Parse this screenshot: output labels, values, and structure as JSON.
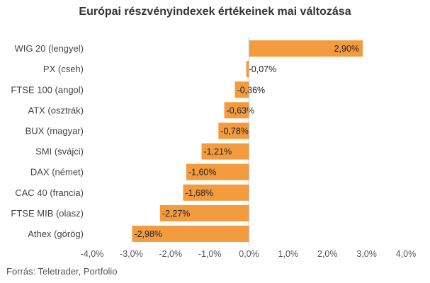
{
  "chart_data": {
    "type": "bar",
    "orientation": "horizontal",
    "title": "Európai részvényindexek értékeinek mai változása",
    "categories": [
      "WIG 20 (lengyel)",
      "PX (cseh)",
      "FTSE 100 (angol)",
      "ATX (osztrák)",
      "BUX (magyar)",
      "SMI (svájci)",
      "DAX (német)",
      "CAC 40 (francia)",
      "FTSE MIB (olasz)",
      "Athex (görög)"
    ],
    "values": [
      2.9,
      -0.07,
      -0.36,
      -0.63,
      -0.78,
      -1.21,
      -1.6,
      -1.68,
      -2.27,
      -2.98
    ],
    "value_labels": [
      "2,90%",
      "-0,07%",
      "-0,36%",
      "-0,63%",
      "-0,78%",
      "-1,21%",
      "-1,60%",
      "-1,68%",
      "-2,27%",
      "-2,98%"
    ],
    "xlim": [
      -4.0,
      4.0
    ],
    "x_ticks": [
      -4,
      -3,
      -2,
      -1,
      0,
      1,
      2,
      3,
      4
    ],
    "x_tick_labels": [
      "-4,0%",
      "-3,0%",
      "-2,0%",
      "-1,0%",
      "0,0%",
      "1,0%",
      "2,0%",
      "3,0%",
      "4,0%"
    ],
    "bar_color": "#f39c3f",
    "grid": false,
    "legend": false
  },
  "source": "Forrás: Teletrader, Portfolio"
}
